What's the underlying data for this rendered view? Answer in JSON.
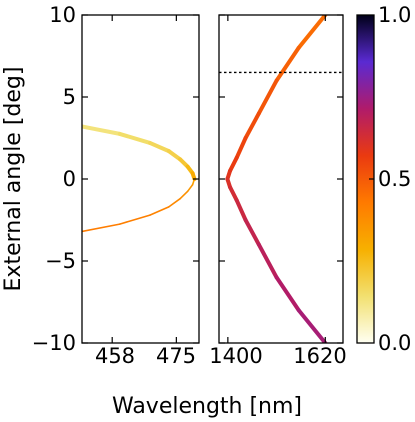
{
  "chart_data": [
    {
      "type": "line",
      "panel": "left",
      "xlabel": "Wavelength [nm]",
      "ylabel": "External angle [deg]",
      "xticks": [
        "458",
        "475"
      ],
      "xlim": [
        450,
        481
      ],
      "ylim": [
        -10,
        10
      ],
      "yticks": [
        "−10",
        "−5",
        "0",
        "5",
        "10"
      ],
      "series": [
        {
          "segment": "upper",
          "x": [
            450,
            460,
            468,
            473,
            476,
            478,
            479.3,
            479.8
          ],
          "y": [
            3.2,
            2.75,
            2.2,
            1.7,
            1.2,
            0.75,
            0.35,
            0.0
          ],
          "intensity": [
            0.12,
            0.14,
            0.16,
            0.18,
            0.2,
            0.24,
            0.28,
            0.32
          ],
          "width": 4
        },
        {
          "segment": "lower",
          "x": [
            479.8,
            479.3,
            478,
            476,
            473,
            468,
            460,
            450
          ],
          "y": [
            0.0,
            -0.35,
            -0.75,
            -1.2,
            -1.7,
            -2.2,
            -2.75,
            -3.2
          ],
          "intensity": [
            0.32,
            0.34,
            0.36,
            0.38,
            0.4,
            0.41,
            0.42,
            0.42
          ],
          "width": 1.6
        }
      ]
    },
    {
      "type": "line",
      "panel": "right",
      "xticks": [
        "1400",
        "1620"
      ],
      "xlim": [
        1380,
        1660
      ],
      "ylim": [
        -10,
        10
      ],
      "series": [
        {
          "name": "",
          "x": [
            1620,
            1560,
            1510,
            1470,
            1440,
            1420,
            1405,
            1399,
            1405,
            1420,
            1440,
            1470,
            1510,
            1560,
            1620
          ],
          "y": [
            10,
            8,
            6,
            4,
            2.5,
            1.3,
            0.5,
            0,
            -0.5,
            -1.3,
            -2.5,
            -4,
            -6,
            -8,
            -10
          ],
          "intensity": [
            0.45,
            0.47,
            0.5,
            0.52,
            0.54,
            0.56,
            0.58,
            0.6,
            0.62,
            0.64,
            0.66,
            0.68,
            0.7,
            0.72,
            0.74
          ]
        }
      ],
      "hline": {
        "y": 6.5,
        "style": "dotted"
      }
    }
  ],
  "colorbar": {
    "ticks": [
      "0.0",
      "0.5",
      "1.0"
    ],
    "range": [
      0,
      1
    ],
    "colors": [
      "#fffff2",
      "#f2e070",
      "#f7b000",
      "#ff7a00",
      "#ea3a10",
      "#b01b6a",
      "#5a2ad2",
      "#000018"
    ]
  }
}
